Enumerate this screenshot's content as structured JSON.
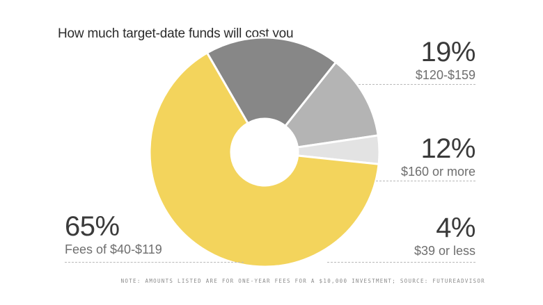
{
  "chart_data": {
    "type": "pie",
    "title": "How much target-date funds will cost you",
    "donut": true,
    "slices": [
      {
        "percent_label": "65%",
        "category": "Fees of $40-$119",
        "value": 65,
        "color": "#f3d45c"
      },
      {
        "percent_label": "19%",
        "category": "$120-$159",
        "value": 19,
        "color": "#878787"
      },
      {
        "percent_label": "12%",
        "category": "$160 or more",
        "value": 12,
        "color": "#b4b4b4"
      },
      {
        "percent_label": "4%",
        "category": "$39 or less",
        "value": 4,
        "color": "#e3e3e3"
      }
    ],
    "note": "Note: Amounts listed are for one-year fees for a $10,000 investment; Source: FutureAdvisor"
  }
}
